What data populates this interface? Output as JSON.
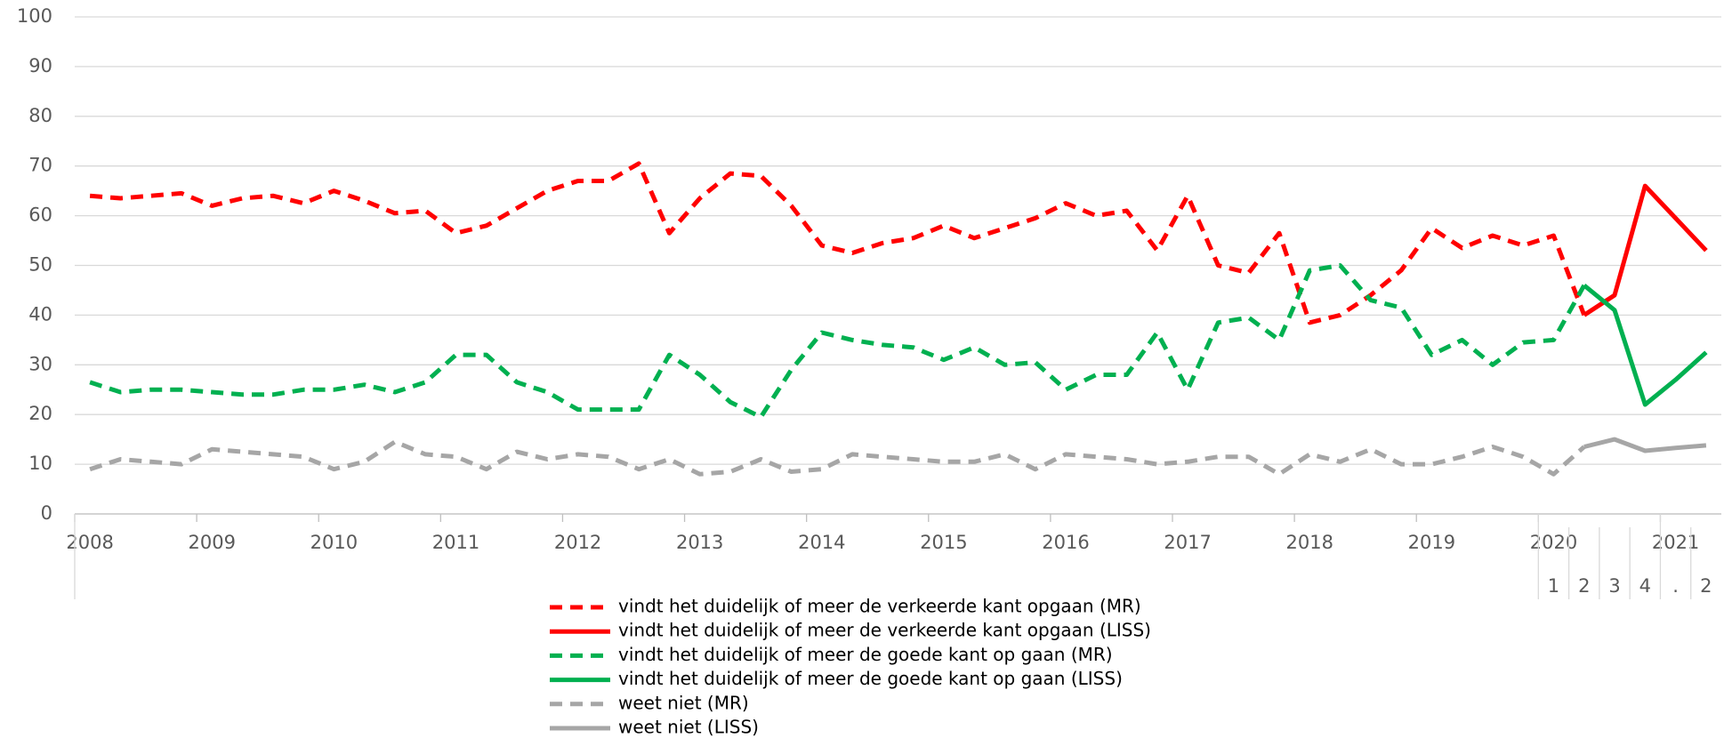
{
  "chart_data": {
    "type": "line",
    "categories": [
      null,
      null,
      null,
      null,
      null,
      null,
      null,
      null,
      null,
      null,
      null,
      null,
      null,
      null,
      null,
      null,
      null,
      null,
      null,
      null,
      null,
      null,
      null,
      null,
      null,
      null,
      null,
      null,
      null,
      null,
      null,
      null,
      null,
      null,
      null,
      null,
      null,
      null,
      null,
      null,
      null,
      null,
      null,
      null,
      null,
      null,
      null,
      null,
      "1",
      "2",
      "3",
      "4",
      ".",
      "2"
    ],
    "x_groups": [
      "2008",
      "2009",
      "2010",
      "2011",
      "2012",
      "2013",
      "2014",
      "2015",
      "2016",
      "2017",
      "2018",
      "2019",
      "2020",
      "2021"
    ],
    "ylim": [
      0,
      100
    ],
    "yticks": [
      0,
      10,
      20,
      30,
      40,
      50,
      60,
      70,
      80,
      90,
      100
    ],
    "grid": true,
    "series": [
      {
        "name": "vindt het duidelijk of meer de verkeerde kant opgaan (MR)",
        "color": "#ff0000",
        "style": "dashed",
        "values": [
          64,
          63.5,
          64,
          64.5,
          62,
          63.5,
          64,
          62.5,
          65,
          63,
          60.5,
          61,
          56.5,
          58,
          61.5,
          65,
          67,
          67,
          70.5,
          56.5,
          63.5,
          68.5,
          68,
          62,
          54,
          52.5,
          54.5,
          55.5,
          58,
          55.5,
          57.5,
          59.5,
          62.5,
          60,
          61,
          53,
          64,
          50,
          48.5,
          56.5,
          38.5,
          40,
          44,
          49,
          57.5,
          53.5,
          56,
          54,
          56,
          40,
          null,
          null,
          null,
          null
        ]
      },
      {
        "name": "vindt het duidelijk of meer de verkeerde kant opgaan (LISS)",
        "color": "#ff0000",
        "style": "solid",
        "values": [
          null,
          null,
          null,
          null,
          null,
          null,
          null,
          null,
          null,
          null,
          null,
          null,
          null,
          null,
          null,
          null,
          null,
          null,
          null,
          null,
          null,
          null,
          null,
          null,
          null,
          null,
          null,
          null,
          null,
          null,
          null,
          null,
          null,
          null,
          null,
          null,
          null,
          null,
          null,
          null,
          null,
          null,
          null,
          null,
          null,
          null,
          null,
          null,
          null,
          40,
          44,
          66,
          59.5,
          53
        ]
      },
      {
        "name": "vindt het duidelijk of meer de goede kant op gaan (MR)",
        "color": "#00b050",
        "style": "dashed",
        "values": [
          26.5,
          24.5,
          25,
          25,
          24.5,
          24,
          24,
          25,
          25,
          26,
          24.5,
          26.5,
          32,
          32,
          26.5,
          24.5,
          21,
          21,
          21,
          32,
          28,
          22.5,
          19.5,
          29,
          36.5,
          35,
          34,
          33.5,
          31,
          33.5,
          30,
          30.5,
          25,
          28,
          28,
          36.5,
          25,
          38.5,
          39.5,
          35,
          49,
          50,
          43,
          41.5,
          32,
          35,
          30,
          34.5,
          35,
          46,
          null,
          null,
          null,
          null
        ]
      },
      {
        "name": "vindt het duidelijk of meer de goede kant op gaan (LISS)",
        "color": "#00b050",
        "style": "solid",
        "values": [
          null,
          null,
          null,
          null,
          null,
          null,
          null,
          null,
          null,
          null,
          null,
          null,
          null,
          null,
          null,
          null,
          null,
          null,
          null,
          null,
          null,
          null,
          null,
          null,
          null,
          null,
          null,
          null,
          null,
          null,
          null,
          null,
          null,
          null,
          null,
          null,
          null,
          null,
          null,
          null,
          null,
          null,
          null,
          null,
          null,
          null,
          null,
          null,
          null,
          46,
          41,
          22,
          27,
          32.5
        ]
      },
      {
        "name": "weet niet (MR)",
        "color": "#a6a6a6",
        "style": "dashed",
        "values": [
          9,
          11,
          10.5,
          10,
          13,
          12.5,
          12,
          11.5,
          9,
          10.5,
          14.5,
          12,
          11.5,
          9,
          12.5,
          11,
          12,
          11.5,
          9,
          11,
          8,
          8.5,
          11,
          8.5,
          9,
          12,
          11.5,
          11,
          10.5,
          10.5,
          12,
          9,
          12,
          11.5,
          11,
          10,
          10.5,
          11.5,
          11.5,
          8,
          12,
          10.5,
          13,
          10,
          10,
          11.5,
          13.5,
          11.5,
          8,
          13.5,
          null,
          null,
          null,
          null
        ]
      },
      {
        "name": "weet niet (LISS)",
        "color": "#a6a6a6",
        "style": "solid",
        "values": [
          null,
          null,
          null,
          null,
          null,
          null,
          null,
          null,
          null,
          null,
          null,
          null,
          null,
          null,
          null,
          null,
          null,
          null,
          null,
          null,
          null,
          null,
          null,
          null,
          null,
          null,
          null,
          null,
          null,
          null,
          null,
          null,
          null,
          null,
          null,
          null,
          null,
          null,
          null,
          null,
          null,
          null,
          null,
          null,
          null,
          null,
          null,
          null,
          null,
          13.5,
          15,
          12.7,
          13.3,
          13.8
        ]
      }
    ]
  }
}
